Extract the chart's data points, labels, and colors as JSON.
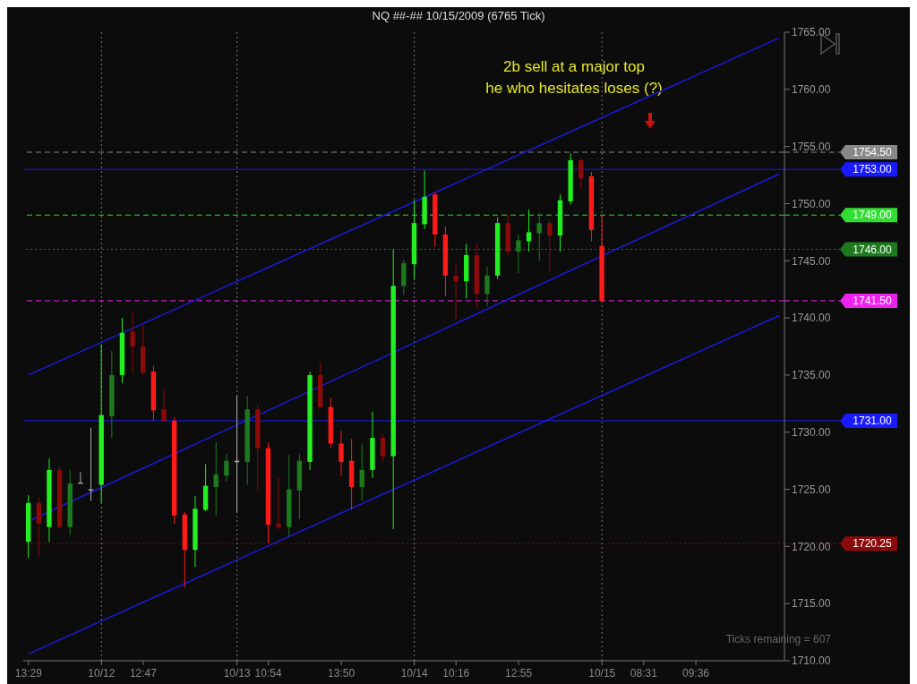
{
  "chart_data": {
    "type": "candlestick",
    "title": "NQ ##-##  10/15/2009 (6765 Tick)",
    "categories": [
      "13:29",
      null,
      null,
      null,
      null,
      null,
      null,
      "10/12",
      null,
      null,
      null,
      "12:47",
      null,
      null,
      null,
      null,
      null,
      null,
      null,
      null,
      "10/13",
      null,
      null,
      "10:54",
      null,
      null,
      null,
      null,
      null,
      null,
      "13:50",
      null,
      null,
      null,
      null,
      null,
      null,
      "10/14",
      null,
      null,
      null,
      "10:16",
      null,
      null,
      null,
      null,
      null,
      "12:55",
      null,
      null,
      null,
      null,
      null,
      null,
      null,
      "10/15",
      null,
      null,
      null,
      "08:31",
      null,
      null,
      null,
      null,
      "09:36",
      null,
      null,
      null,
      null,
      null,
      null,
      null,
      null
    ],
    "ohlc": [
      [
        1720.4,
        1724.5,
        1719.0,
        1723.8
      ],
      [
        1723.8,
        1724.3,
        1719.1,
        1722.0
      ],
      [
        1721.7,
        1727.7,
        1720.4,
        1726.7
      ],
      [
        1726.7,
        1727.0,
        1721.7,
        1721.7
      ],
      [
        1721.7,
        1726.7,
        1721.0,
        1725.5
      ],
      [
        1725.6,
        1726.5,
        1725.6,
        1725.6
      ],
      [
        1725.0,
        1730.4,
        1724.0,
        1725.0
      ],
      [
        1725.4,
        1737.7,
        1723.8,
        1731.5
      ],
      [
        1731.4,
        1737.1,
        1729.5,
        1735.0
      ],
      [
        1735.0,
        1740.0,
        1734.3,
        1738.7
      ],
      [
        1738.8,
        1740.5,
        1735.2,
        1737.5
      ],
      [
        1737.5,
        1739.4,
        1735.0,
        1735.2
      ],
      [
        1735.3,
        1735.8,
        1731.0,
        1731.9
      ],
      [
        1732.0,
        1733.8,
        1731.0,
        1731.0
      ],
      [
        1731.0,
        1731.3,
        1722.0,
        1722.7
      ],
      [
        1722.8,
        1723.0,
        1716.4,
        1719.7
      ],
      [
        1719.7,
        1724.4,
        1718.2,
        1723.3
      ],
      [
        1723.2,
        1727.2,
        1723.1,
        1725.3
      ],
      [
        1725.2,
        1729.1,
        1722.7,
        1726.3
      ],
      [
        1726.2,
        1728.1,
        1725.7,
        1727.5
      ],
      [
        1727.5,
        1733.2,
        1723.0,
        1727.5
      ],
      [
        1727.4,
        1733.2,
        1725.4,
        1732.0
      ],
      [
        1732.0,
        1732.4,
        1724.9,
        1728.6
      ],
      [
        1728.6,
        1729.1,
        1720.3,
        1721.9
      ],
      [
        1722.0,
        1726.0,
        1721.5,
        1721.7
      ],
      [
        1721.7,
        1728.0,
        1720.9,
        1725.0
      ],
      [
        1724.9,
        1728.1,
        1722.4,
        1727.5
      ],
      [
        1727.4,
        1735.3,
        1726.7,
        1735.0
      ],
      [
        1735.0,
        1736.1,
        1732.2,
        1732.2
      ],
      [
        1732.2,
        1733.0,
        1728.6,
        1729.0
      ],
      [
        1729.0,
        1730.1,
        1726.2,
        1727.4
      ],
      [
        1727.5,
        1729.4,
        1723.2,
        1725.2
      ],
      [
        1725.2,
        1729.0,
        1724.0,
        1726.7
      ],
      [
        1726.7,
        1731.8,
        1726.0,
        1729.5
      ],
      [
        1729.5,
        1729.8,
        1727.4,
        1727.9
      ],
      [
        1727.9,
        1746.0,
        1721.5,
        1742.8
      ],
      [
        1742.8,
        1745.1,
        1742.0,
        1744.8
      ],
      [
        1744.7,
        1750.3,
        1743.4,
        1748.3
      ],
      [
        1748.2,
        1752.9,
        1747.8,
        1750.6
      ],
      [
        1750.8,
        1751.0,
        1746.2,
        1747.3
      ],
      [
        1747.3,
        1748.0,
        1741.9,
        1743.7
      ],
      [
        1743.7,
        1744.8,
        1739.8,
        1743.2
      ],
      [
        1743.2,
        1746.5,
        1741.7,
        1745.5
      ],
      [
        1745.5,
        1746.5,
        1740.9,
        1742.1
      ],
      [
        1742.1,
        1744.5,
        1741.0,
        1743.7
      ],
      [
        1743.7,
        1748.8,
        1743.4,
        1748.3
      ],
      [
        1748.3,
        1749.1,
        1745.5,
        1745.8
      ],
      [
        1745.8,
        1747.3,
        1743.9,
        1746.8
      ],
      [
        1746.7,
        1749.5,
        1745.8,
        1747.5
      ],
      [
        1747.4,
        1749.2,
        1745.0,
        1748.3
      ],
      [
        1748.3,
        1748.5,
        1744.0,
        1747.2
      ],
      [
        1747.2,
        1750.8,
        1745.8,
        1750.3
      ],
      [
        1750.2,
        1754.4,
        1749.9,
        1753.8
      ],
      [
        1753.8,
        1753.9,
        1751.3,
        1752.2
      ],
      [
        1752.4,
        1752.8,
        1746.7,
        1747.7
      ],
      [
        1746.3,
        1749.0,
        1741.5,
        1741.5
      ],
      null,
      null,
      null,
      null,
      null,
      null,
      null,
      null,
      null,
      null,
      null,
      null,
      null,
      null,
      null,
      null,
      null
    ],
    "colors": [
      "#22ee22",
      "#8b0a0a",
      "#22ee22",
      "#8b0a0a",
      "#1e7a1e",
      "#aaaaaa",
      "#aaaaaa",
      "#22ee22",
      "#1e7a1e",
      "#22ee22",
      "#8b0a0a",
      "#8b0a0a",
      "#ff1a1a",
      "#8b0a0a",
      "#ff1a1a",
      "#ff1a1a",
      "#22ee22",
      "#22ee22",
      "#1e7a1e",
      "#1e7a1e",
      "#aaaaaa",
      "#1e7a1e",
      "#8b0a0a",
      "#ff1a1a",
      "#8b0a0a",
      "#1e7a1e",
      "#1e7a1e",
      "#22ee22",
      "#8b0a0a",
      "#ff1a1a",
      "#ff1a1a",
      "#ff1a1a",
      "#1e7a1e",
      "#22ee22",
      "#8b0a0a",
      "#22ee22",
      "#1e7a1e",
      "#22ee22",
      "#22ee22",
      "#ff1a1a",
      "#ff1a1a",
      "#8b0a0a",
      "#22ee22",
      "#8b0a0a",
      "#1e7a1e",
      "#22ee22",
      "#8b0a0a",
      "#1e7a1e",
      "#22ee22",
      "#1e7a1e",
      "#8b0a0a",
      "#22ee22",
      "#22ee22",
      "#8b0a0a",
      "#ff1a1a",
      "#ff1a1a",
      null,
      null,
      null,
      null,
      null,
      null,
      null,
      null,
      null,
      null,
      null,
      null,
      null,
      null,
      null,
      null,
      null
    ],
    "series": [
      {
        "type": "line",
        "color": "#1a1add",
        "values": [
          1735.0,
          null,
          null,
          null,
          null,
          null,
          null,
          null,
          null,
          null,
          null,
          null,
          null,
          null,
          null,
          null,
          null,
          null,
          null,
          null,
          null,
          null,
          null,
          null,
          null,
          null,
          null,
          null,
          null,
          null,
          null,
          null,
          null,
          null,
          null,
          null,
          null,
          null,
          null,
          null,
          null,
          null,
          null,
          null,
          null,
          null,
          null,
          null,
          null,
          null,
          null,
          null,
          null,
          null,
          null,
          null,
          null,
          null,
          null,
          null,
          null,
          null,
          null,
          null,
          null,
          null,
          null,
          null,
          null,
          null,
          null,
          null,
          1764.5
        ]
      },
      {
        "type": "line",
        "color": "#1a1add",
        "values": [
          1722.2,
          null,
          null,
          null,
          null,
          null,
          null,
          null,
          null,
          null,
          null,
          null,
          null,
          null,
          null,
          null,
          null,
          null,
          null,
          null,
          null,
          null,
          null,
          null,
          null,
          null,
          null,
          null,
          null,
          null,
          null,
          null,
          null,
          null,
          null,
          null,
          null,
          null,
          null,
          null,
          null,
          null,
          null,
          null,
          null,
          null,
          null,
          null,
          null,
          null,
          null,
          null,
          null,
          null,
          null,
          null,
          null,
          null,
          null,
          null,
          null,
          null,
          null,
          null,
          null,
          null,
          null,
          null,
          null,
          null,
          null,
          null,
          1752.6
        ]
      },
      {
        "type": "line",
        "color": "#1a1add",
        "values": [
          1710.6,
          null,
          null,
          null,
          null,
          null,
          null,
          null,
          null,
          null,
          null,
          null,
          null,
          null,
          null,
          null,
          null,
          null,
          null,
          null,
          null,
          null,
          null,
          null,
          null,
          null,
          null,
          null,
          null,
          null,
          null,
          null,
          null,
          null,
          null,
          null,
          null,
          null,
          null,
          null,
          null,
          null,
          null,
          null,
          null,
          null,
          null,
          null,
          null,
          null,
          null,
          null,
          null,
          null,
          null,
          null,
          null,
          null,
          null,
          null,
          null,
          null,
          null,
          null,
          null,
          null,
          null,
          null,
          null,
          null,
          null,
          null,
          1740.2
        ]
      }
    ],
    "ylim": [
      1710,
      1765
    ],
    "yticks": [
      {
        "value": 1710,
        "label": "1710.00"
      },
      {
        "value": 1715,
        "label": "1715.00"
      },
      {
        "value": 1720,
        "label": "1720.00"
      },
      {
        "value": 1725,
        "label": "1725.00"
      },
      {
        "value": 1730,
        "label": "1730.00"
      },
      {
        "value": 1735,
        "label": "1735.00"
      },
      {
        "value": 1740,
        "label": "1740.00"
      },
      {
        "value": 1745,
        "label": "1745.00"
      },
      {
        "value": 1750,
        "label": "1750.00"
      },
      {
        "value": 1755,
        "label": "1755.00"
      },
      {
        "value": 1760,
        "label": "1760.00"
      },
      {
        "value": 1765,
        "label": "1765.00"
      }
    ],
    "ref_lines": [
      {
        "axis": "y",
        "value": 1754.5,
        "label": "1754.50",
        "color": "#888888",
        "line_style": "dashed"
      },
      {
        "axis": "y",
        "value": 1753,
        "label": "1753.00",
        "color": "#1a1aff",
        "line_style": "solid"
      },
      {
        "axis": "y",
        "value": 1749,
        "label": "1749.00",
        "color": "#33dd33",
        "line_style": "dashed"
      },
      {
        "axis": "y",
        "value": 1746,
        "label": "1746.00",
        "color": "#1e7a1e",
        "line_style": "dotted"
      },
      {
        "axis": "y",
        "value": 1741.5,
        "label": "1741.50",
        "color": "#ee22ee",
        "line_style": "dashed"
      },
      {
        "axis": "y",
        "value": 1731,
        "label": "1731.00",
        "color": "#1a1aff",
        "line_style": "solid"
      },
      {
        "axis": "y",
        "value": 1720.25,
        "label": "1720.25",
        "color": "#8b0a0a",
        "line_style": "dotted"
      },
      {
        "axis": "x",
        "value": "10/12",
        "color": "#777777",
        "line_style": "dotted"
      },
      {
        "axis": "x",
        "value": "10/13",
        "color": "#777777",
        "line_style": "dotted"
      },
      {
        "axis": "x",
        "value": "10/14",
        "color": "#777777",
        "line_style": "dotted"
      },
      {
        "axis": "x",
        "value": "10/15",
        "color": "#777777",
        "line_style": "dotted"
      }
    ],
    "annotations": [
      "2b sell at a major top",
      "he who hesitates loses (?)",
      "Ticks remaining = 607"
    ],
    "grid": false,
    "legend": false
  }
}
